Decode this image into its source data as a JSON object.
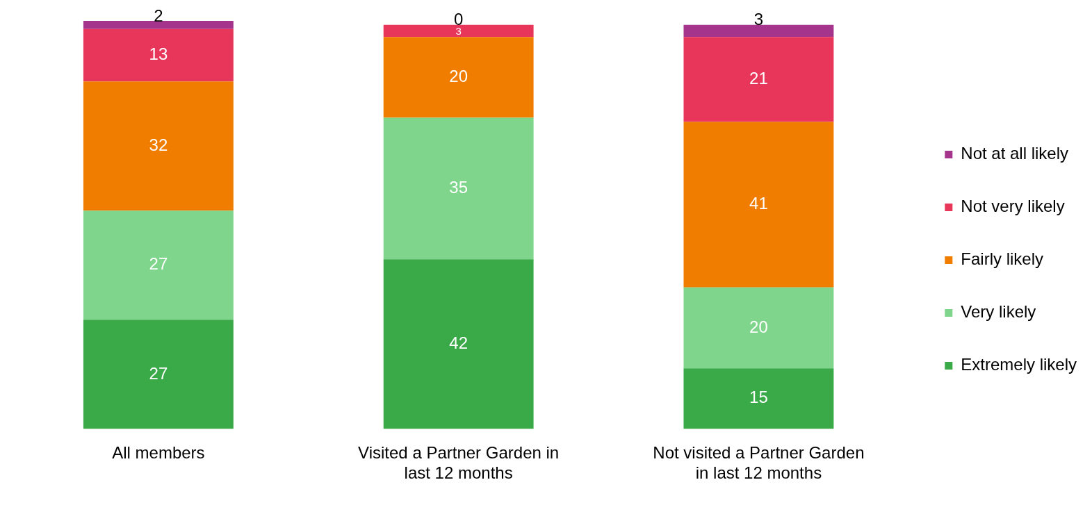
{
  "chart_data": {
    "type": "bar",
    "stacked": true,
    "data_labels": true,
    "legend": "right",
    "grid": false,
    "categories": [
      "All members",
      "Visited a Partner Garden in last 12 months",
      "Not visited a Partner Garden in last 12 months"
    ],
    "series": [
      {
        "name": "Extremely likely",
        "color": "#3aaa48",
        "values": [
          27,
          42,
          15
        ]
      },
      {
        "name": "Very likely",
        "color": "#7fd58b",
        "values": [
          27,
          35,
          20
        ]
      },
      {
        "name": "Fairly likely",
        "color": "#f07d00",
        "values": [
          32,
          20,
          41
        ]
      },
      {
        "name": "Not very likely",
        "color": "#e8365a",
        "values": [
          13,
          3,
          21
        ]
      },
      {
        "name": "Not at all likely",
        "color": "#a4348c",
        "values": [
          2,
          0,
          3
        ]
      }
    ]
  }
}
